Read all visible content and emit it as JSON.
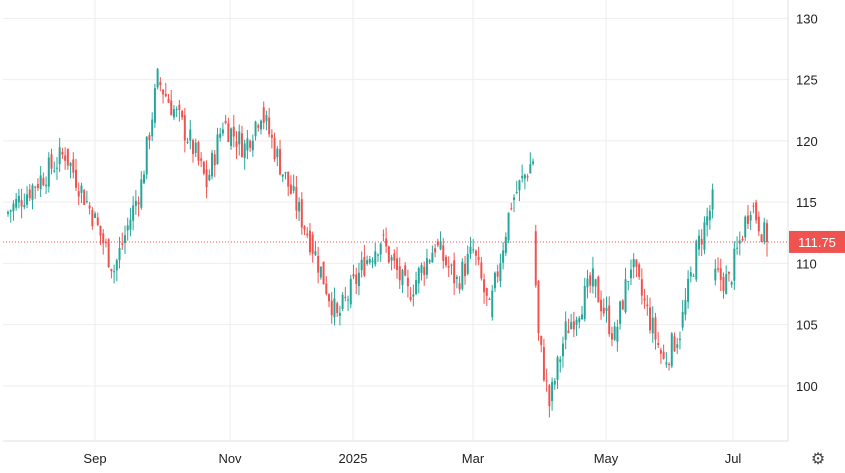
{
  "chart_data": {
    "type": "candlestick",
    "ylim": [
      95.5,
      131.5
    ],
    "y_ticks": [
      100,
      105,
      110,
      115,
      120,
      125,
      130
    ],
    "x_ticks": [
      "Sep",
      "Nov",
      "2025",
      "Mar",
      "May",
      "Jul"
    ],
    "last_price": 111.75,
    "last_price_label": "111.75",
    "grid": true,
    "colors": {
      "up": "#26a69a",
      "down": "#ef5350",
      "grid": "#eeeeee",
      "price_line": "#ef5350",
      "axis": "#e0e0e0"
    },
    "segments": [
      {
        "from": 114.0,
        "to": 119.0,
        "days": 22
      },
      {
        "from": 119.0,
        "to": 114.0,
        "days": 10
      },
      {
        "from": 114.0,
        "to": 109.5,
        "days": 8
      },
      {
        "from": 109.5,
        "to": 116.5,
        "days": 10
      },
      {
        "from": 116.5,
        "to": 125.0,
        "days": 6
      },
      {
        "from": 125.0,
        "to": 120.0,
        "days": 12
      },
      {
        "from": 120.0,
        "to": 116.5,
        "days": 6
      },
      {
        "from": 116.5,
        "to": 121.5,
        "days": 6
      },
      {
        "from": 121.5,
        "to": 119.5,
        "days": 8
      },
      {
        "from": 119.5,
        "to": 122.5,
        "days": 6
      },
      {
        "from": 122.5,
        "to": 117.5,
        "days": 8
      },
      {
        "from": 117.5,
        "to": 112.0,
        "days": 10
      },
      {
        "from": 112.0,
        "to": 105.5,
        "days": 10
      },
      {
        "from": 105.5,
        "to": 110.0,
        "days": 10
      },
      {
        "from": 110.0,
        "to": 112.0,
        "days": 6
      },
      {
        "from": 112.0,
        "to": 107.5,
        "days": 10
      },
      {
        "from": 107.5,
        "to": 111.5,
        "days": 10
      },
      {
        "from": 111.5,
        "to": 108.5,
        "days": 8
      },
      {
        "from": 108.5,
        "to": 111.0,
        "days": 6
      },
      {
        "from": 111.0,
        "to": 106.0,
        "days": 6
      },
      {
        "from": 106.0,
        "to": 115.0,
        "days": 8
      },
      {
        "from": 115.0,
        "to": 118.5,
        "days": 8
      },
      {
        "from": 112.5,
        "to": 104.0,
        "days": 2
      },
      {
        "from": 104.0,
        "to": 98.5,
        "days": 4
      },
      {
        "from": 98.5,
        "to": 104.5,
        "days": 6
      },
      {
        "from": 104.5,
        "to": 108.5,
        "days": 10
      },
      {
        "from": 108.5,
        "to": 104.0,
        "days": 8
      },
      {
        "from": 104.0,
        "to": 110.0,
        "days": 6
      },
      {
        "from": 110.0,
        "to": 102.0,
        "days": 12
      },
      {
        "from": 102.0,
        "to": 104.5,
        "days": 6
      },
      {
        "from": 104.5,
        "to": 111.0,
        "days": 6
      },
      {
        "from": 111.0,
        "to": 115.0,
        "days": 6
      },
      {
        "from": 109.0,
        "to": 108.5,
        "days": 6
      },
      {
        "from": 108.5,
        "to": 115.0,
        "days": 8
      },
      {
        "from": 115.0,
        "to": 111.75,
        "days": 6
      }
    ]
  },
  "ui": {
    "settings_icon": "gear-icon",
    "settings_glyph": "⚙"
  }
}
